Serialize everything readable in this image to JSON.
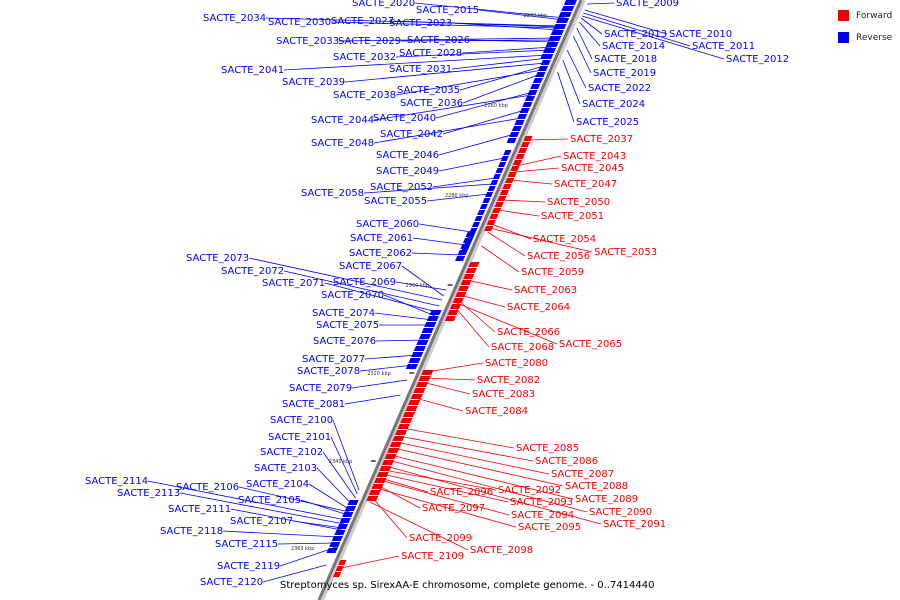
{
  "legend": {
    "forward_label": "Forward",
    "reverse_label": "Reverse",
    "forward_color": "#ee0000",
    "reverse_color": "#0000ee"
  },
  "caption": "Streptomyces sp. SirexAA-E chromosome, complete genome. - 0..7414440",
  "ticks": [
    "2240 kbp",
    "2260 kbp",
    "2280 kbp",
    "2300 kbp",
    "2320 kbp",
    "2340 kbp",
    "2360 kbp"
  ],
  "reverse_genes": [
    "SACTE_2020",
    "SACTE_2015",
    "SACTE_2034",
    "SACTE_2030",
    "SACTE_2027",
    "SACTE_2023",
    "SACTE_2033",
    "SACTE_2029",
    "SACTE_2026",
    "SACTE_2032",
    "SACTE_2028",
    "SACTE_2041",
    "SACTE_2031",
    "SACTE_2039",
    "SACTE_2035",
    "SACTE_2038",
    "SACTE_2036",
    "SACTE_2044",
    "SACTE_2040",
    "SACTE_2042",
    "SACTE_2048",
    "SACTE_2046",
    "SACTE_2049",
    "SACTE_2052",
    "SACTE_2058",
    "SACTE_2055",
    "SACTE_2060",
    "SACTE_2061",
    "SACTE_2062",
    "SACTE_2073",
    "SACTE_2067",
    "SACTE_2072",
    "SACTE_2069",
    "SACTE_2071",
    "SACTE_2070",
    "SACTE_2074",
    "SACTE_2075",
    "SACTE_2076",
    "SACTE_2077",
    "SACTE_2078",
    "SACTE_2079",
    "SACTE_2081",
    "SACTE_2100",
    "SACTE_2101",
    "SACTE_2102",
    "SACTE_2103",
    "SACTE_2104",
    "SACTE_2114",
    "SACTE_2106",
    "SACTE_2113",
    "SACTE_2105",
    "SACTE_2111",
    "SACTE_2107",
    "SACTE_2118",
    "SACTE_2115",
    "SACTE_2119",
    "SACTE_2120",
    "SACTE_2009",
    "SACTE_2013",
    "SACTE_2010",
    "SACTE_2014",
    "SACTE_2011",
    "SACTE_2018",
    "SACTE_2012",
    "SACTE_2019",
    "SACTE_2022",
    "SACTE_2024",
    "SACTE_2025"
  ],
  "forward_genes": [
    "SACTE_2037",
    "SACTE_2043",
    "SACTE_2045",
    "SACTE_2047",
    "SACTE_2050",
    "SACTE_2051",
    "SACTE_2054",
    "SACTE_2053",
    "SACTE_2056",
    "SACTE_2059",
    "SACTE_2063",
    "SACTE_2064",
    "SACTE_2066",
    "SACTE_2065",
    "SACTE_2068",
    "SACTE_2080",
    "SACTE_2082",
    "SACTE_2083",
    "SACTE_2084",
    "SACTE_2085",
    "SACTE_2086",
    "SACTE_2087",
    "SACTE_2088",
    "SACTE_2089",
    "SACTE_2090",
    "SACTE_2091",
    "SACTE_2092",
    "SACTE_2096",
    "SACTE_2093",
    "SACTE_2094",
    "SACTE_2097",
    "SACTE_2095",
    "SACTE_2099",
    "SACTE_2098",
    "SACTE_2109"
  ]
}
